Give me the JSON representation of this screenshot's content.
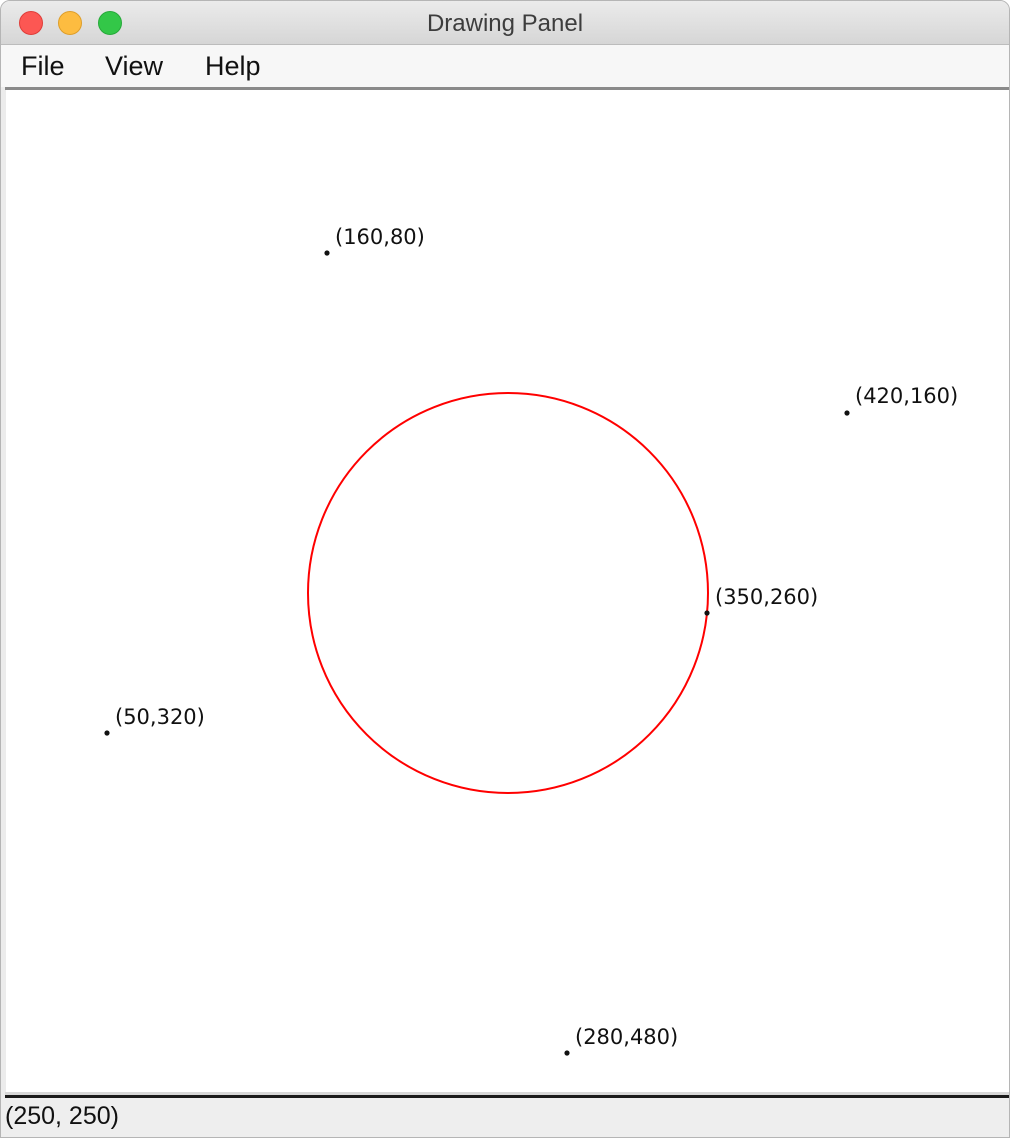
{
  "window": {
    "title": "Drawing Panel"
  },
  "menu": {
    "items": [
      {
        "label": "File"
      },
      {
        "label": "View"
      },
      {
        "label": "Help"
      }
    ]
  },
  "canvas": {
    "circle": {
      "color": "#ff0000"
    },
    "points": [
      {
        "label": "(160,80)"
      },
      {
        "label": "(420,160)"
      },
      {
        "label": "(350,260)"
      },
      {
        "label": "(50,320)"
      },
      {
        "label": "(280,480)"
      }
    ]
  },
  "status": {
    "text": "(250, 250)"
  }
}
